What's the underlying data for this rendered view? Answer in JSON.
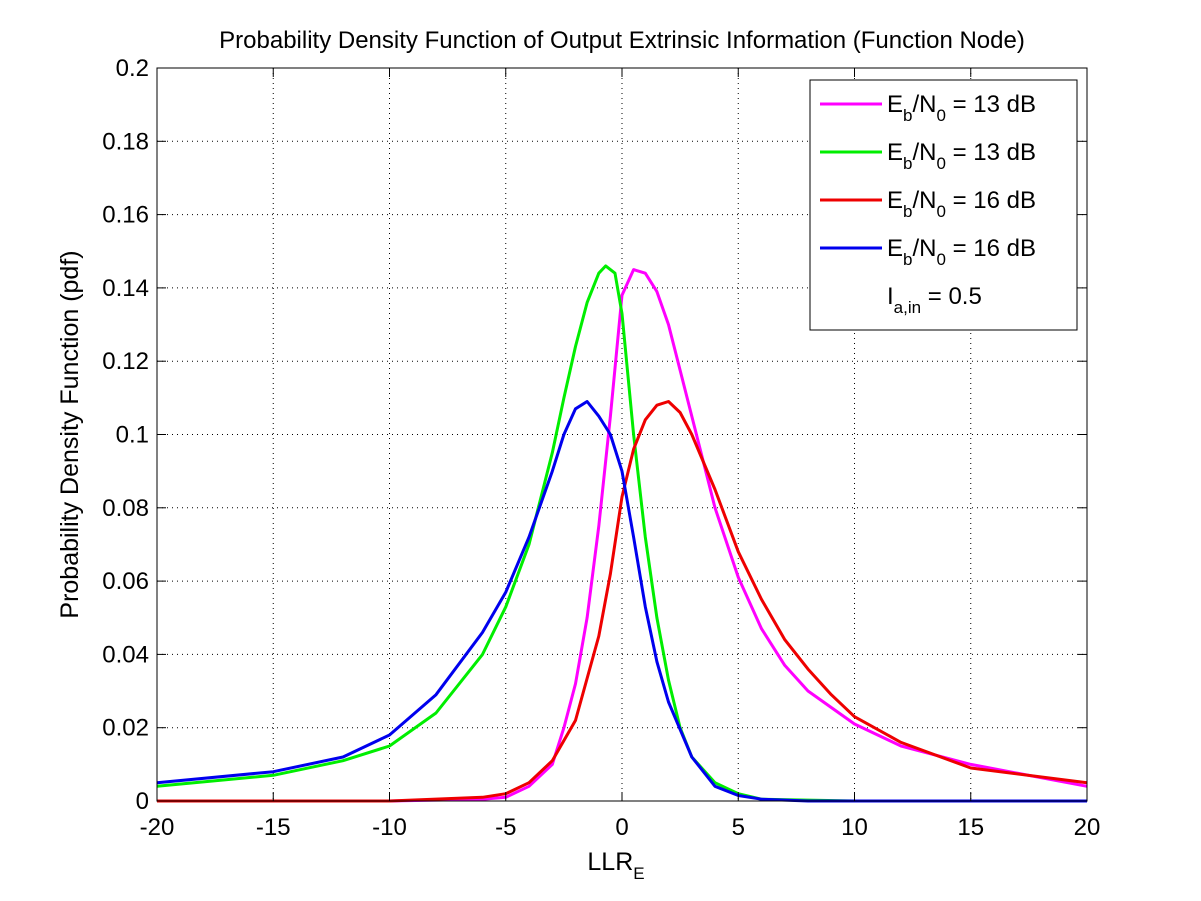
{
  "chart_data": {
    "type": "line",
    "title": "Probability Density Function of Output Extrinsic Information (Function Node)",
    "xlabel": {
      "main": "LLR",
      "sub": "E"
    },
    "ylabel": "Probability Density Function (pdf)",
    "xlim": [
      -20,
      20
    ],
    "ylim": [
      0,
      0.2
    ],
    "xticks": [
      -20,
      -15,
      -10,
      -5,
      0,
      5,
      10,
      15,
      20
    ],
    "xtick_labels": [
      "-20",
      "-15",
      "-10",
      "-5",
      "0",
      "5",
      "10",
      "15",
      "20"
    ],
    "yticks": [
      0,
      0.02,
      0.04,
      0.06,
      0.08,
      0.1,
      0.12,
      0.14,
      0.16,
      0.18,
      0.2
    ],
    "ytick_labels": [
      "0",
      "0.02",
      "0.04",
      "0.06",
      "0.08",
      "0.1",
      "0.12",
      "0.14",
      "0.16",
      "0.18",
      "0.2"
    ],
    "grid": true,
    "legend_position": "top-right",
    "legend_note": {
      "main": "I",
      "sub": "a,in",
      "rest": " = 0.5"
    },
    "series": [
      {
        "legend": {
          "main": "E",
          "sub1": "b",
          "mid": "/N",
          "sub2": "0",
          "rest": " = 13 dB"
        },
        "color": "#ff00ff",
        "x": [
          -20,
          -10,
          -6,
          -5,
          -4,
          -3,
          -2.5,
          -2,
          -1.5,
          -1,
          -0.5,
          0,
          0.5,
          1,
          1.5,
          2,
          3,
          4,
          5,
          6,
          7,
          8,
          10,
          12,
          15,
          20
        ],
        "y": [
          0,
          0,
          0.0005,
          0.001,
          0.004,
          0.01,
          0.02,
          0.032,
          0.05,
          0.075,
          0.105,
          0.138,
          0.145,
          0.144,
          0.139,
          0.13,
          0.105,
          0.08,
          0.061,
          0.047,
          0.037,
          0.03,
          0.021,
          0.015,
          0.01,
          0.004
        ]
      },
      {
        "legend": {
          "main": "E",
          "sub1": "b",
          "mid": "/N",
          "sub2": "0",
          "rest": " = 13 dB"
        },
        "color": "#00ee00",
        "x": [
          -20,
          -15,
          -12,
          -10,
          -8,
          -6,
          -5,
          -4,
          -3,
          -2.5,
          -2,
          -1.5,
          -1,
          -0.7,
          -0.3,
          0,
          0.5,
          1,
          1.5,
          2,
          2.5,
          3,
          4,
          5,
          6,
          10,
          20
        ],
        "y": [
          0.004,
          0.007,
          0.011,
          0.015,
          0.024,
          0.04,
          0.053,
          0.07,
          0.095,
          0.11,
          0.124,
          0.136,
          0.144,
          0.146,
          0.144,
          0.133,
          0.1,
          0.072,
          0.05,
          0.033,
          0.02,
          0.012,
          0.005,
          0.002,
          0.0005,
          0,
          0
        ]
      },
      {
        "legend": {
          "main": "E",
          "sub1": "b",
          "mid": "/N",
          "sub2": "0",
          "rest": " = 16 dB"
        },
        "color": "#ee0000",
        "x": [
          -20,
          -10,
          -6,
          -5,
          -4,
          -3,
          -2,
          -1,
          -0.5,
          0,
          0.5,
          1,
          1.5,
          2,
          2.5,
          3,
          4,
          5,
          6,
          7,
          8,
          9,
          10,
          12,
          15,
          20
        ],
        "y": [
          0,
          0,
          0.001,
          0.002,
          0.005,
          0.011,
          0.022,
          0.045,
          0.062,
          0.083,
          0.096,
          0.104,
          0.108,
          0.109,
          0.106,
          0.1,
          0.085,
          0.068,
          0.055,
          0.044,
          0.036,
          0.029,
          0.023,
          0.016,
          0.009,
          0.005
        ]
      },
      {
        "legend": {
          "main": "E",
          "sub1": "b",
          "mid": "/N",
          "sub2": "0",
          "rest": " = 16 dB"
        },
        "color": "#0000ee",
        "x": [
          -20,
          -15,
          -12,
          -10,
          -8,
          -6,
          -5,
          -4,
          -3,
          -2.5,
          -2,
          -1.5,
          -1,
          -0.5,
          0,
          0.5,
          1,
          1.5,
          2,
          3,
          4,
          5,
          6,
          8,
          10,
          20
        ],
        "y": [
          0.005,
          0.008,
          0.012,
          0.018,
          0.029,
          0.046,
          0.057,
          0.072,
          0.09,
          0.1,
          0.107,
          0.109,
          0.105,
          0.1,
          0.09,
          0.072,
          0.053,
          0.038,
          0.027,
          0.012,
          0.004,
          0.0015,
          0.0005,
          0,
          0,
          0
        ]
      }
    ]
  }
}
